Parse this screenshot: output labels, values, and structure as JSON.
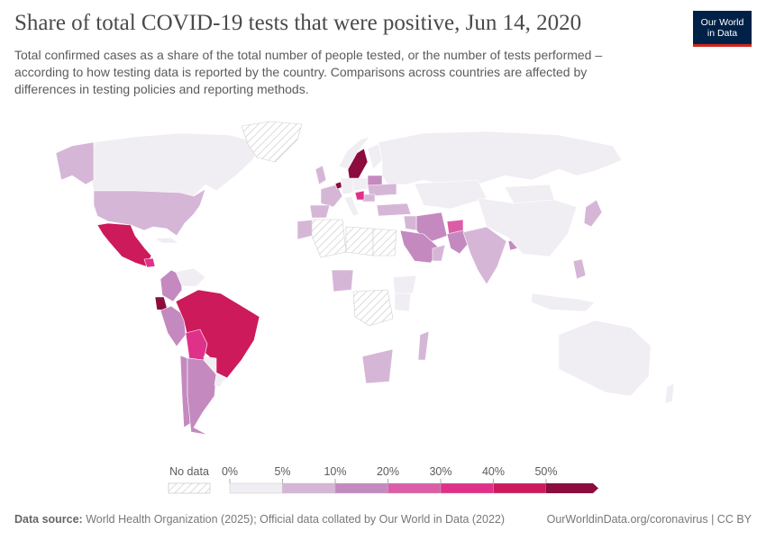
{
  "title": "Share of total COVID-19 tests that were positive, Jun 14, 2020",
  "subtitle": "Total confirmed cases as a share of the total number of people tested, or the number of tests performed – according to how testing data is reported by the country. Comparisons across countries are affected by differences in testing policies and reporting methods.",
  "logo": {
    "line1": "Our World",
    "line2": "in Data"
  },
  "legend": {
    "no_data_label": "No data",
    "bins": [
      {
        "label": "0%",
        "color": "#f0edf3"
      },
      {
        "label": "5%",
        "color": "#d6b6d7"
      },
      {
        "label": "10%",
        "color": "#c48ac0"
      },
      {
        "label": "20%",
        "color": "#db5da7"
      },
      {
        "label": "30%",
        "color": "#e0318a"
      },
      {
        "label": "40%",
        "color": "#cc1a5a"
      },
      {
        "label": "50%",
        "color": "#8c0c3e"
      }
    ]
  },
  "colors": {
    "nodata_stroke": "#cfcfcf",
    "border": "#ffffff",
    "ocean": "#ffffff"
  },
  "chart_data": {
    "type": "choropleth",
    "metric": "Share of total COVID-19 tests that were positive",
    "date": "Jun 14, 2020",
    "bins_percent": [
      0,
      5,
      10,
      20,
      30,
      40,
      50
    ],
    "countries": [
      {
        "name": "Canada",
        "bin": "0-5%"
      },
      {
        "name": "Alaska (United States)",
        "bin": "5-10%"
      },
      {
        "name": "United States",
        "bin": "5-10%"
      },
      {
        "name": "Mexico",
        "bin": "40-50%"
      },
      {
        "name": "Guatemala",
        "bin": "30-40%"
      },
      {
        "name": "Cuba",
        "bin": "0-5%"
      },
      {
        "name": "Colombia",
        "bin": "10-20%"
      },
      {
        "name": "Venezuela",
        "bin": "0-5%"
      },
      {
        "name": "Ecuador",
        "bin": "50%+"
      },
      {
        "name": "Peru",
        "bin": "10-20%"
      },
      {
        "name": "Brazil",
        "bin": "40-50%"
      },
      {
        "name": "Bolivia",
        "bin": "30-40%"
      },
      {
        "name": "Paraguay",
        "bin": "0-5%"
      },
      {
        "name": "Chile",
        "bin": "10-20%"
      },
      {
        "name": "Argentina",
        "bin": "10-20%"
      },
      {
        "name": "Uruguay",
        "bin": "0-5%"
      },
      {
        "name": "Greenland",
        "bin": "no data"
      },
      {
        "name": "Sweden",
        "bin": "50%+"
      },
      {
        "name": "Norway",
        "bin": "0-5%"
      },
      {
        "name": "Finland",
        "bin": "0-5%"
      },
      {
        "name": "Russia",
        "bin": "0-5%"
      },
      {
        "name": "United Kingdom",
        "bin": "5-10%"
      },
      {
        "name": "France",
        "bin": "5-10%"
      },
      {
        "name": "Spain",
        "bin": "5-10%"
      },
      {
        "name": "Belgium",
        "bin": "50%+"
      },
      {
        "name": "Germany",
        "bin": "0-5%"
      },
      {
        "name": "Poland",
        "bin": "0-5%"
      },
      {
        "name": "Belarus",
        "bin": "10-20%"
      },
      {
        "name": "Ukraine",
        "bin": "5-10%"
      },
      {
        "name": "Romania",
        "bin": "5-10%"
      },
      {
        "name": "Serbia",
        "bin": "30-40%"
      },
      {
        "name": "Italy",
        "bin": "0-5%"
      },
      {
        "name": "Turkey",
        "bin": "5-10%"
      },
      {
        "name": "Iran",
        "bin": "10-20%"
      },
      {
        "name": "Iraq",
        "bin": "5-10%"
      },
      {
        "name": "Saudi Arabia",
        "bin": "10-20%"
      },
      {
        "name": "Oman",
        "bin": "5-10%"
      },
      {
        "name": "Afghanistan",
        "bin": "20-30%"
      },
      {
        "name": "Pakistan",
        "bin": "10-20%"
      },
      {
        "name": "India",
        "bin": "5-10%"
      },
      {
        "name": "Bangladesh",
        "bin": "10-20%"
      },
      {
        "name": "Kazakhstan",
        "bin": "0-5%"
      },
      {
        "name": "Mongolia",
        "bin": "0-5%"
      },
      {
        "name": "China",
        "bin": "0-5%"
      },
      {
        "name": "Japan",
        "bin": "5-10%"
      },
      {
        "name": "Philippines",
        "bin": "5-10%"
      },
      {
        "name": "Indonesia",
        "bin": "0-5%"
      },
      {
        "name": "Australia",
        "bin": "0-5%"
      },
      {
        "name": "New Zealand",
        "bin": "0-5%"
      },
      {
        "name": "Morocco",
        "bin": "5-10%"
      },
      {
        "name": "Algeria",
        "bin": "no data"
      },
      {
        "name": "Libya",
        "bin": "no data"
      },
      {
        "name": "Egypt",
        "bin": "no data"
      },
      {
        "name": "Nigeria",
        "bin": "5-10%"
      },
      {
        "name": "Ethiopia",
        "bin": "0-5%"
      },
      {
        "name": "Kenya",
        "bin": "0-5%"
      },
      {
        "name": "DR Congo",
        "bin": "no data"
      },
      {
        "name": "South Africa",
        "bin": "5-10%"
      },
      {
        "name": "Madagascar",
        "bin": "5-10%"
      }
    ]
  },
  "footer": {
    "source_label": "Data source:",
    "source_text": "World Health Organization (2025); Official data collated by Our World in Data (2022)",
    "right_text": "OurWorldinData.org/coronavirus | CC BY"
  }
}
